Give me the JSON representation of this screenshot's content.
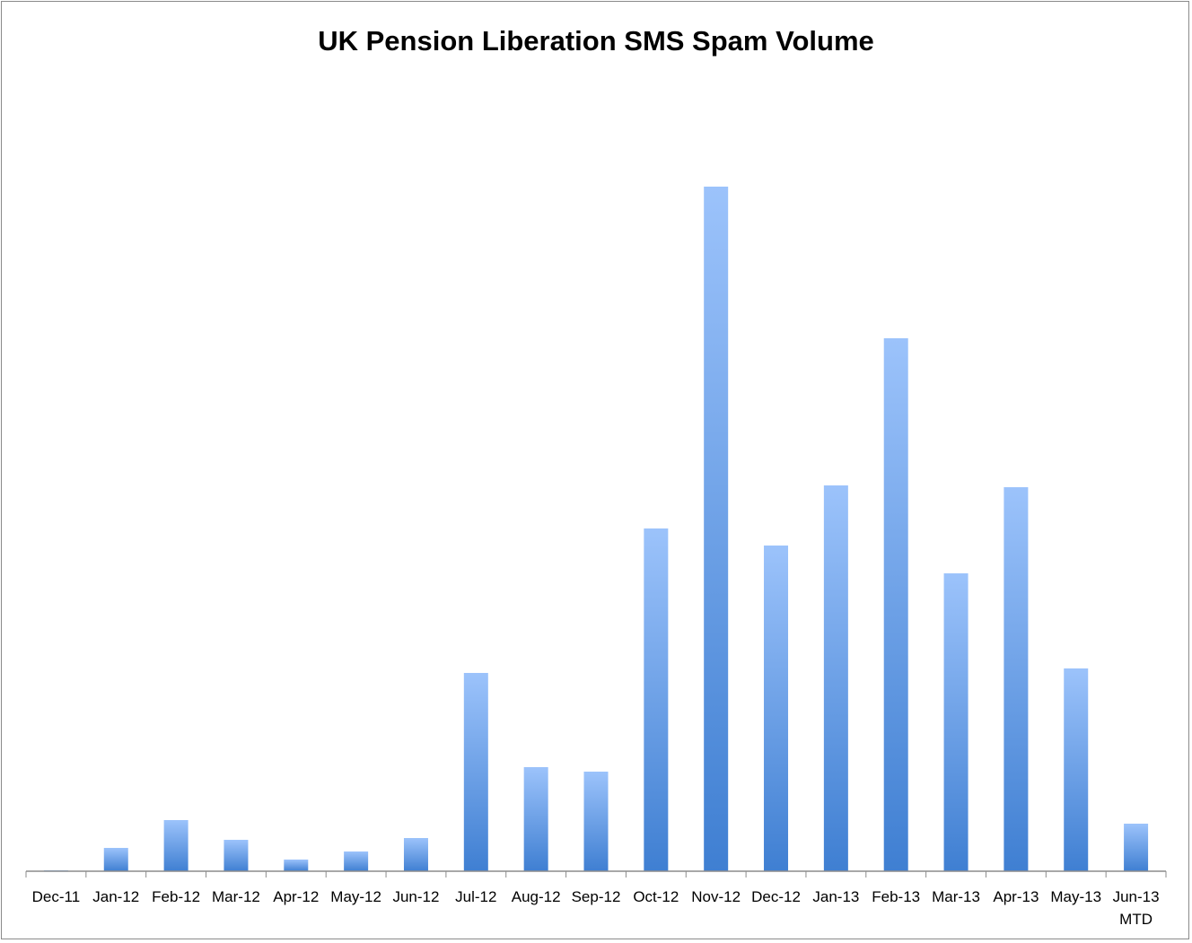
{
  "chart_data": {
    "type": "bar",
    "title": "UK Pension Liberation SMS Spam Volume",
    "xlabel": "",
    "ylabel": "",
    "ylim": [
      0,
      800
    ],
    "y_axis_shown": false,
    "grid": false,
    "legend": "none",
    "color": "#4a86d8",
    "categories": [
      "Dec-11",
      "Jan-12",
      "Feb-12",
      "Mar-12",
      "Apr-12",
      "May-12",
      "Jun-12",
      "Jul-12",
      "Aug-12",
      "Sep-12",
      "Oct-12",
      "Nov-12",
      "Dec-12",
      "Jan-13",
      "Feb-13",
      "Mar-13",
      "Apr-13",
      "May-13",
      "Jun-13"
    ],
    "category_sublabels": {
      "Jun-13": "MTD"
    },
    "values": [
      1,
      26,
      57,
      35,
      13,
      22,
      37,
      221,
      116,
      111,
      382,
      763,
      363,
      430,
      594,
      332,
      428,
      226,
      53
    ]
  }
}
